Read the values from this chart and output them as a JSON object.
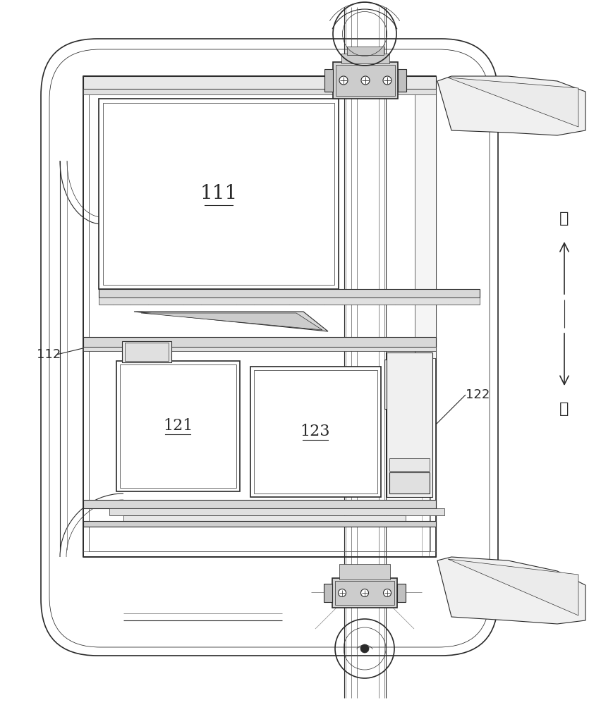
{
  "bg_color": "#ffffff",
  "line_color": "#2a2a2a",
  "label_111": "111",
  "label_112": "112",
  "label_121": "121",
  "label_122": "122",
  "label_123": "123",
  "arrow_right_label": "右",
  "arrow_left_label": "左",
  "fig_width": 8.52,
  "fig_height": 10.0,
  "dpi": 100
}
